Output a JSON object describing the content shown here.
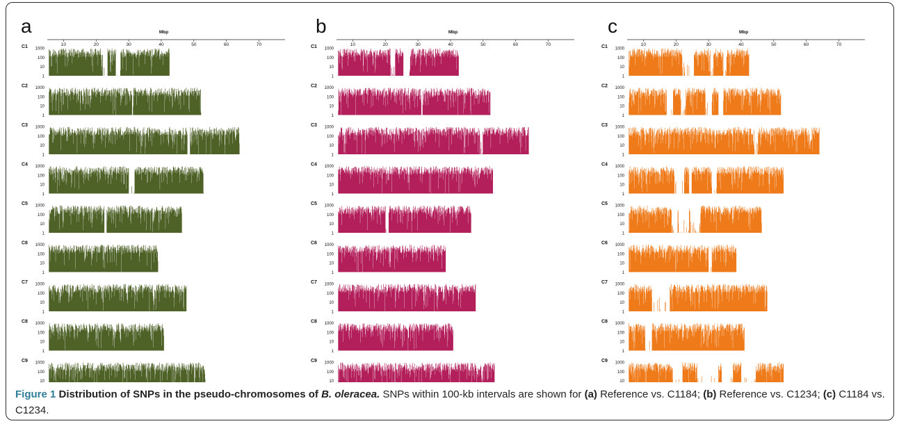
{
  "panels": [
    {
      "letter": "a",
      "color": "#4e6127",
      "subtitle": "Reference vs. C1184"
    },
    {
      "letter": "b",
      "color": "#b31f5a",
      "subtitle": "Reference vs. C1234"
    },
    {
      "letter": "c",
      "color": "#ee7a1a",
      "subtitle": "C1184 vs. C1234"
    }
  ],
  "axis": {
    "x_title": "Mbp",
    "x_ticks": [
      "10",
      "20",
      "30",
      "40",
      "50",
      "60",
      "70"
    ],
    "y_ticks": [
      "1000",
      "100",
      "10",
      "1"
    ]
  },
  "caption": {
    "label": "Figure 1",
    "title_main": "Distribution of SNPs in the pseudo-chromosomes of ",
    "title_species": "B. oleracea.",
    "body_start": " SNPs within 100-kb intervals are shown for ",
    "a_ref": "(a)",
    "a_text": " Reference vs. C1184; ",
    "b_ref": "(b)",
    "b_text": " Reference vs. C1234; ",
    "c_ref": "(c)",
    "c_text": " C1184 vs. C1234."
  },
  "chart_data": {
    "type": "bar",
    "title": "Distribution of SNPs in the pseudo-chromosomes of B. oleracea.",
    "xlabel": "Mbp",
    "ylabel": "",
    "y_scale": "log",
    "ylim": [
      1,
      1000
    ],
    "xlim": [
      5,
      78
    ],
    "interval_mbp": 0.1,
    "chromosomes": [
      {
        "name": "C1",
        "length_mbp": {
          "a": 42.5,
          "b": 42.5,
          "c": 42.5
        },
        "gaps": {
          "a": [
            [
              22,
              23.5
            ],
            [
              26,
              27.5
            ]
          ],
          "b": [
            [
              21.5,
              23
            ],
            [
              25.5,
              27.5
            ]
          ],
          "c": [
            [
              22,
              25.5
            ],
            [
              30.5,
              31.5
            ],
            [
              34.5,
              35.5
            ]
          ]
        }
      },
      {
        "name": "C2",
        "length_mbp": {
          "a": 52.2,
          "b": 52.2,
          "c": 52.2
        },
        "gaps": {
          "a": [
            [
              31,
              31.4
            ]
          ],
          "b": [
            [
              31,
              31.4
            ]
          ],
          "c": [
            [
              17,
              19
            ],
            [
              21.5,
              23
            ],
            [
              29,
              31
            ],
            [
              33,
              34.5
            ]
          ]
        }
      },
      {
        "name": "C3",
        "length_mbp": {
          "a": 64,
          "b": 64,
          "c": 64
        },
        "gaps": {
          "a": [
            [
              48,
              48.8
            ]
          ],
          "b": [
            [
              49,
              49.8
            ]
          ],
          "c": [
            [
              44,
              45
            ]
          ]
        }
      },
      {
        "name": "C4",
        "length_mbp": {
          "a": 53,
          "b": 53,
          "c": 53
        },
        "gaps": {
          "a": [
            [
              30,
              31.8
            ]
          ],
          "b": [],
          "c": [
            [
              19.5,
              22.5
            ],
            [
              24,
              24.8
            ],
            [
              31,
              32.5
            ]
          ]
        }
      },
      {
        "name": "C5",
        "length_mbp": {
          "a": 46.3,
          "b": 46.3,
          "c": 46.3
        },
        "gaps": {
          "a": [
            [
              22.5,
              23.2
            ]
          ],
          "b": [
            [
              20,
              21
            ]
          ],
          "c": [
            [
              18.5,
              20.5
            ],
            [
              20.8,
              24
            ],
            [
              24.3,
              27.5
            ]
          ]
        }
      },
      {
        "name": "C6",
        "length_mbp": {
          "a": 39,
          "b": 38.5,
          "c": 38.5
        },
        "gaps": {
          "a": [],
          "b": [],
          "c": [
            [
              30,
              31
            ]
          ]
        }
      },
      {
        "name": "C7",
        "length_mbp": {
          "a": 47.7,
          "b": 47.7,
          "c": 48
        },
        "gaps": {
          "a": [],
          "b": [],
          "c": [
            [
              12.5,
              18
            ]
          ]
        }
      },
      {
        "name": "C8",
        "length_mbp": {
          "a": 40.8,
          "b": 40.8,
          "c": 41
        },
        "gaps": {
          "a": [],
          "b": [],
          "c": [
            [
              10.5,
              12.5
            ]
          ]
        }
      },
      {
        "name": "C9",
        "length_mbp": {
          "a": 53.5,
          "b": 53.5,
          "c": 53
        },
        "gaps": {
          "a": [],
          "b": [],
          "c": [
            [
              19,
              22
            ],
            [
              26.5,
              33
            ],
            [
              34,
              37.5
            ],
            [
              40,
              44.5
            ]
          ]
        }
      }
    ],
    "series": [
      {
        "panel": "a",
        "name": "Reference vs. C1184"
      },
      {
        "panel": "b",
        "name": "Reference vs. C1234"
      },
      {
        "panel": "c",
        "name": "C1184 vs. C1234"
      }
    ]
  }
}
